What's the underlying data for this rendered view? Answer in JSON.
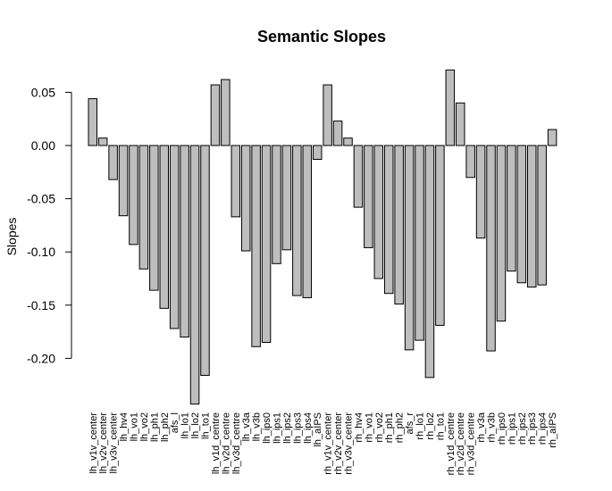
{
  "chart_data": {
    "type": "bar",
    "title": "Semantic Slopes",
    "xlabel": "",
    "ylabel": "Slopes",
    "ylim": [
      -0.24,
      0.07
    ],
    "yticks": [
      0.05,
      0.0,
      -0.05,
      -0.1,
      -0.15,
      -0.2
    ],
    "ytick_labels": [
      "0.05",
      "0.00",
      "-0.05",
      "-0.10",
      "-0.15",
      "-0.20"
    ],
    "grid": false,
    "bar_color": "#bebebe",
    "categories": [
      "lh_v1v_center",
      "lh_v2v_center",
      "lh_v3v_center",
      "lh_hv4",
      "lh_vo1",
      "lh_vo2",
      "lh_ph1",
      "lh_ph2",
      "afs_l",
      "lh_lo1",
      "lh_lo2",
      "lh_to1",
      "lh_v1d_centre",
      "lh_v2d_centre",
      "lh_v3d_centre",
      "lh_v3a",
      "lh_v3b",
      "lh_ips0",
      "lh_ips1",
      "lh_ips2",
      "lh_ips3",
      "lh_ips4",
      "lh_aIPS",
      "rh_v1v_center",
      "rh_v2v_center",
      "rh_v3v_center",
      "rh_hv4",
      "rh_vo1",
      "rh_vo2",
      "rh_ph1",
      "rh_ph2",
      "afs_r",
      "rh_lo1",
      "rh_lo2",
      "rh_to1",
      "rh_v1d_centre",
      "rh_v2d_centre",
      "rh_v3d_centre",
      "rh_v3a",
      "rh_v3b",
      "rh_ips0",
      "rh_ips1",
      "rh_ips2",
      "rh_ips3",
      "rh_ips4",
      "rh_aIPS"
    ],
    "values": [
      0.044,
      0.007,
      -0.032,
      -0.066,
      -0.093,
      -0.116,
      -0.136,
      -0.153,
      -0.172,
      -0.18,
      -0.243,
      -0.216,
      0.057,
      0.062,
      -0.067,
      -0.099,
      -0.189,
      -0.185,
      -0.111,
      -0.098,
      -0.141,
      -0.143,
      -0.013,
      0.057,
      0.023,
      0.007,
      -0.058,
      -0.096,
      -0.125,
      -0.139,
      -0.149,
      -0.192,
      -0.183,
      -0.218,
      -0.169,
      0.071,
      0.04,
      -0.03,
      -0.087,
      -0.193,
      -0.165,
      -0.118,
      -0.129,
      -0.133,
      -0.131,
      0.015
    ]
  }
}
